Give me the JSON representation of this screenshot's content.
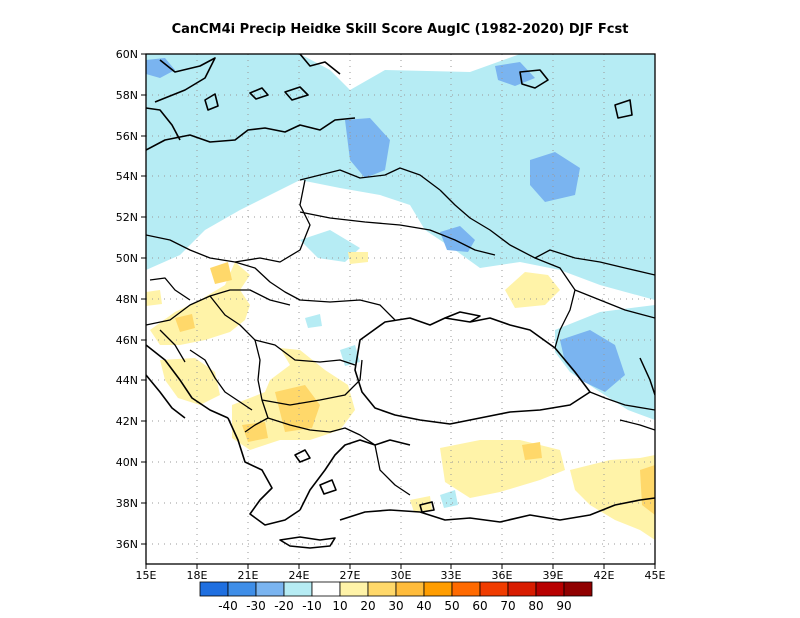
{
  "title": "CanCM4i Precip Heidke Skill Score AugIC (1982-2020) DJF Fcst",
  "map": {
    "lon_range": [
      15,
      45
    ],
    "lat_range": [
      35,
      60
    ],
    "lon_ticks": [
      "15E",
      "18E",
      "21E",
      "24E",
      "27E",
      "30E",
      "33E",
      "36E",
      "39E",
      "42E",
      "45E"
    ],
    "lat_ticks": [
      "60N",
      "58N",
      "56N",
      "54N",
      "52N",
      "50N",
      "48N",
      "46N",
      "44N",
      "42N",
      "40N",
      "38N",
      "36N"
    ],
    "grid": "dotted"
  },
  "colorbar": {
    "colors": [
      "#1f6fe0",
      "#3f8ee8",
      "#7ab4f0",
      "#b6ecf4",
      "#ffffff",
      "#fff3a8",
      "#ffd86a",
      "#ffbc3c",
      "#ff9d00",
      "#ff6a00",
      "#f03c00",
      "#d81c00",
      "#b80000",
      "#900000"
    ],
    "labels": [
      "-40",
      "-30",
      "-20",
      "-10",
      "10",
      "20",
      "30",
      "40",
      "50",
      "60",
      "70",
      "80",
      "90"
    ]
  }
}
